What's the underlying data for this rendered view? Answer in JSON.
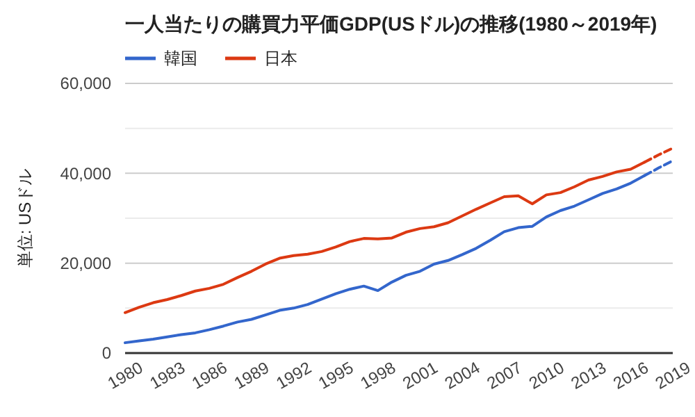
{
  "chart_data": {
    "type": "line",
    "title": "一人当たりの購買力平価GDP(USドル)の推移(1980～2019年)",
    "ylabel": "単位: USドル",
    "legend": "top left",
    "grid": "y",
    "line_style": "solid",
    "xlim": [
      1980,
      2019
    ],
    "xticks": [
      1980,
      1983,
      1986,
      1989,
      1992,
      1995,
      1998,
      2001,
      2004,
      2007,
      2010,
      2013,
      2016,
      2019
    ],
    "ylim": [
      0,
      60000
    ],
    "yticks": [
      {
        "value": 0,
        "label": "0"
      },
      {
        "value": 10000,
        "label": null
      },
      {
        "value": 20000,
        "label": "20,000"
      },
      {
        "value": 30000,
        "label": null
      },
      {
        "value": 40000,
        "label": "40,000"
      },
      {
        "value": 50000,
        "label": null
      },
      {
        "value": 60000,
        "label": "60,000"
      }
    ],
    "series": [
      {
        "name": "韓国",
        "color": "#3366cc",
        "x": [
          1980,
          1981,
          1982,
          1983,
          1984,
          1985,
          1986,
          1987,
          1988,
          1989,
          1990,
          1991,
          1992,
          1993,
          1994,
          1995,
          1996,
          1997,
          1998,
          1999,
          2000,
          2001,
          2002,
          2003,
          2004,
          2005,
          2006,
          2007,
          2008,
          2009,
          2010,
          2011,
          2012,
          2013,
          2014,
          2015,
          2016,
          2017
        ],
        "values": [
          2300,
          2700,
          3100,
          3600,
          4100,
          4500,
          5200,
          6000,
          6900,
          7500,
          8500,
          9500,
          10000,
          10800,
          12000,
          13200,
          14200,
          14900,
          13900,
          15800,
          17300,
          18200,
          19800,
          20600,
          21900,
          23300,
          25100,
          27000,
          27900,
          28200,
          30300,
          31700,
          32700,
          34100,
          35500,
          36500,
          37800,
          39500
        ]
      },
      {
        "name": "日本",
        "color": "#dc3912",
        "x": [
          1980,
          1981,
          1982,
          1983,
          1984,
          1985,
          1986,
          1987,
          1988,
          1989,
          1990,
          1991,
          1992,
          1993,
          1994,
          1995,
          1996,
          1997,
          1998,
          1999,
          2000,
          2001,
          2002,
          2003,
          2004,
          2005,
          2006,
          2007,
          2008,
          2009,
          2010,
          2011,
          2012,
          2013,
          2014,
          2015,
          2016,
          2017
        ],
        "values": [
          9000,
          10200,
          11200,
          11900,
          12800,
          13800,
          14400,
          15300,
          16800,
          18200,
          19800,
          21100,
          21700,
          22000,
          22600,
          23600,
          24800,
          25500,
          25400,
          25600,
          26900,
          27700,
          28100,
          29000,
          30500,
          32000,
          33400,
          34800,
          35000,
          33200,
          35200,
          35700,
          37000,
          38500,
          39300,
          40300,
          40900,
          42500
        ]
      },
      {
        "color": "#3366cc",
        "line_style": "dashed",
        "x": [
          2017,
          2018,
          2019
        ],
        "values": [
          39500,
          41200,
          42800
        ]
      },
      {
        "color": "#dc3912",
        "line_style": "dashed",
        "x": [
          2017,
          2018,
          2019
        ],
        "values": [
          42500,
          44100,
          45600
        ]
      }
    ]
  }
}
